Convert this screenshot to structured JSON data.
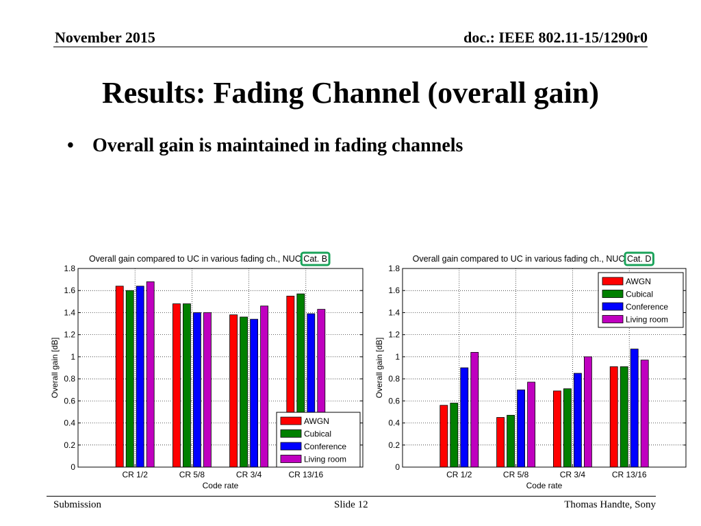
{
  "header": {
    "date": "November 2015",
    "doc_id": "doc.: IEEE 802.11-15/1290r0"
  },
  "slide_title": "Results: Fading Channel (overall gain)",
  "bullets": [
    {
      "marker": "•",
      "text": "Overall gain is maintained in fading channels"
    }
  ],
  "footer": {
    "left": "Submission",
    "center": "Slide 12",
    "right": "Thomas Handte, Sony"
  },
  "colors": {
    "AWGN": "#ff0000",
    "Cubical": "#008000",
    "Conference": "#0000ff",
    "Living room": "#bf00bf",
    "highlight": "#1aa35a"
  },
  "chart_data": [
    {
      "type": "bar",
      "title": "Overall gain compared to UC in various fading ch., NUC",
      "title_highlight": "Cat. B",
      "xlabel": "Code rate",
      "ylabel": "Overall gain [dB]",
      "ylim": [
        0,
        1.8
      ],
      "yticks": [
        0,
        0.2,
        0.4,
        0.6,
        0.8,
        1,
        1.2,
        1.4,
        1.6,
        1.8
      ],
      "grid": true,
      "legend_position": "bottom-right",
      "categories": [
        "CR 1/2",
        "CR 5/8",
        "CR 3/4",
        "CR 13/16"
      ],
      "series": [
        {
          "name": "AWGN",
          "values": [
            1.64,
            1.48,
            1.38,
            1.55
          ]
        },
        {
          "name": "Cubical",
          "values": [
            1.6,
            1.48,
            1.36,
            1.57
          ]
        },
        {
          "name": "Conference",
          "values": [
            1.64,
            1.4,
            1.34,
            1.39
          ]
        },
        {
          "name": "Living room",
          "values": [
            1.68,
            1.4,
            1.46,
            1.43
          ]
        }
      ]
    },
    {
      "type": "bar",
      "title": "Overall gain compared to UC in various fading ch., NUC",
      "title_highlight": "Cat. D",
      "xlabel": "Code rate",
      "ylabel": "Overall gain [dB]",
      "ylim": [
        0,
        1.8
      ],
      "yticks": [
        0,
        0.2,
        0.4,
        0.6,
        0.8,
        1,
        1.2,
        1.4,
        1.6,
        1.8
      ],
      "grid": true,
      "legend_position": "top-right",
      "categories": [
        "CR 1/2",
        "CR 5/8",
        "CR 3/4",
        "CR 13/16"
      ],
      "series": [
        {
          "name": "AWGN",
          "values": [
            0.56,
            0.45,
            0.69,
            0.91
          ]
        },
        {
          "name": "Cubical",
          "values": [
            0.58,
            0.47,
            0.71,
            0.91
          ]
        },
        {
          "name": "Conference",
          "values": [
            0.9,
            0.7,
            0.85,
            1.07
          ]
        },
        {
          "name": "Living room",
          "values": [
            1.04,
            0.77,
            1.0,
            0.97
          ]
        }
      ]
    }
  ]
}
